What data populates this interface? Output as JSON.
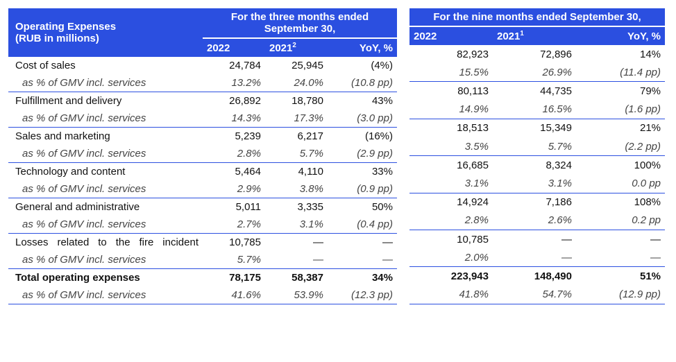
{
  "header": {
    "title_l1": "Operating Expenses",
    "title_l2": "(RUB in millions)",
    "period3": "For the three months ended September 30,",
    "period9": "For the nine months ended September 30,",
    "col2022": "2022",
    "col2021_3m": "2021",
    "col2021_9m": "2021",
    "sup3m": "2",
    "sup9m": "1",
    "yoy": "YoY, %"
  },
  "rows": [
    {
      "label": "Cost of sales",
      "q3": [
        "24,784",
        "25,945",
        "(4%)"
      ],
      "ytd": [
        "82,923",
        "72,896",
        "14%"
      ]
    },
    {
      "label": "as % of GMV incl. services",
      "sub": true,
      "q3": [
        "13.2%",
        "24.0%",
        "(10.8 pp)"
      ],
      "ytd": [
        "15.5%",
        "26.9%",
        "(11.4 pp)"
      ]
    },
    {
      "label": "Fulfillment and delivery",
      "q3": [
        "26,892",
        "18,780",
        "43%"
      ],
      "ytd": [
        "80,113",
        "44,735",
        "79%"
      ]
    },
    {
      "label": "as % of GMV incl. services",
      "sub": true,
      "q3": [
        "14.3%",
        "17.3%",
        "(3.0 pp)"
      ],
      "ytd": [
        "14.9%",
        "16.5%",
        "(1.6 pp)"
      ]
    },
    {
      "label": "Sales and marketing",
      "q3": [
        "5,239",
        "6,217",
        "(16%)"
      ],
      "ytd": [
        "18,513",
        "15,349",
        "21%"
      ]
    },
    {
      "label": "as % of GMV incl. services",
      "sub": true,
      "q3": [
        "2.8%",
        "5.7%",
        "(2.9 pp)"
      ],
      "ytd": [
        "3.5%",
        "5.7%",
        "(2.2 pp)"
      ]
    },
    {
      "label": "Technology and content",
      "q3": [
        "5,464",
        "4,110",
        "33%"
      ],
      "ytd": [
        "16,685",
        "8,324",
        "100%"
      ]
    },
    {
      "label": "as % of GMV incl. services",
      "sub": true,
      "q3": [
        "2.9%",
        "3.8%",
        "(0.9 pp)"
      ],
      "ytd": [
        "3.1%",
        "3.1%",
        "0.0 pp"
      ]
    },
    {
      "label": "General and administrative",
      "q3": [
        "5,011",
        "3,335",
        "50%"
      ],
      "ytd": [
        "14,924",
        "7,186",
        "108%"
      ]
    },
    {
      "label": "as % of GMV incl. services",
      "sub": true,
      "q3": [
        "2.7%",
        "3.1%",
        "(0.4 pp)"
      ],
      "ytd": [
        "2.8%",
        "2.6%",
        "0.2 pp"
      ]
    },
    {
      "label": "Losses related to the fire incident",
      "justify": true,
      "q3": [
        "10,785",
        "—",
        "—"
      ],
      "ytd": [
        "10,785",
        "—",
        "—"
      ]
    },
    {
      "label": "as % of GMV incl. services",
      "sub": true,
      "q3": [
        "5.7%",
        "—",
        "—"
      ],
      "ytd": [
        "2.0%",
        "—",
        "—"
      ]
    },
    {
      "label": "Total operating expenses",
      "bold": true,
      "q3": [
        "78,175",
        "58,387",
        "34%"
      ],
      "ytd": [
        "223,943",
        "148,490",
        "51%"
      ]
    },
    {
      "label": "as % of GMV incl. services",
      "sub": true,
      "q3": [
        "41.6%",
        "53.9%",
        "(12.3 pp)"
      ],
      "ytd": [
        "41.8%",
        "54.7%",
        "(12.9 pp)"
      ]
    }
  ],
  "style": {
    "header_bg": "#2b4fe0",
    "border_color": "#2b4fe0"
  }
}
